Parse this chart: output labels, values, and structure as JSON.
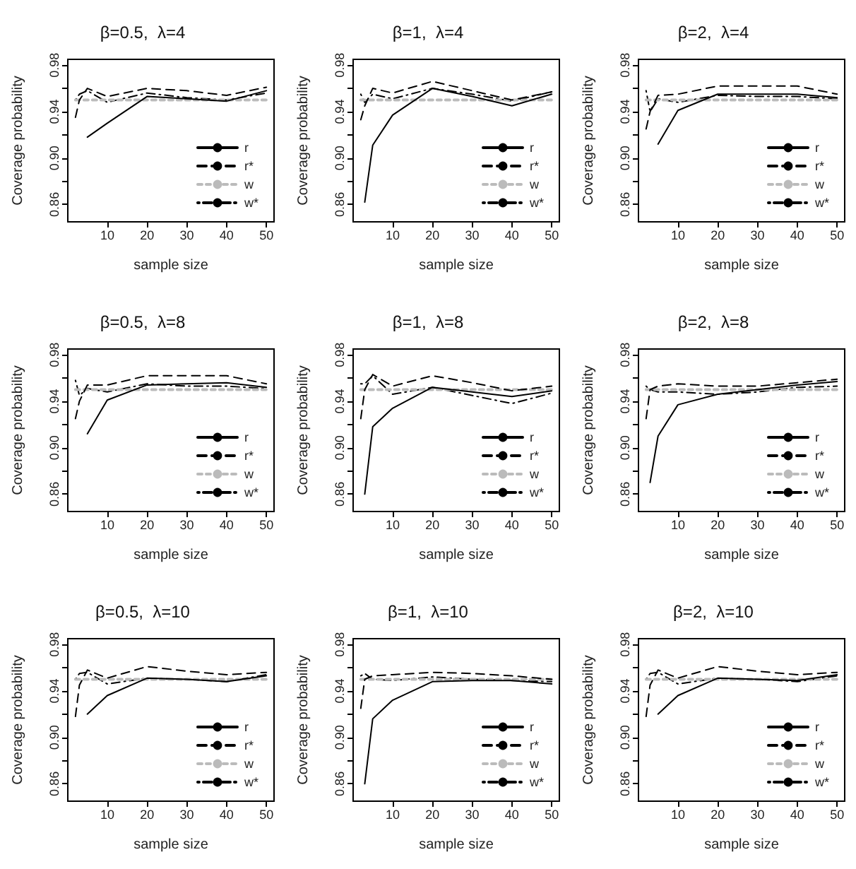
{
  "chart_data": [
    {
      "type": "line",
      "title": "β=0.5,  λ=4",
      "xlabel": "sample size",
      "ylabel": "Coverage probability",
      "x": [
        2,
        3,
        5,
        10,
        20,
        30,
        40,
        50
      ],
      "xlim": [
        0.08,
        51.92
      ],
      "ylim": [
        0.845,
        0.985
      ],
      "xticks": [
        10,
        20,
        30,
        40,
        50
      ],
      "yticks": [
        0.86,
        {
          "value": 0.88,
          "label": null
        },
        {
          "value": 0.9,
          "label": "0.90"
        },
        {
          "value": 0.92,
          "label": null
        },
        0.94,
        {
          "value": 0.96,
          "label": null
        },
        0.98
      ],
      "grid": false,
      "legend": "bottom right",
      "marker": "none",
      "series": [
        {
          "name": "r",
          "color": "#000000",
          "line_style": "solid",
          "values": [
            null,
            null,
            0.918,
            0.93,
            0.953,
            0.951,
            0.949,
            0.958
          ]
        },
        {
          "name": "r*",
          "color": "#000000",
          "line_style": "dashed",
          "values": [
            0.935,
            0.95,
            0.96,
            0.953,
            0.96,
            0.958,
            0.954,
            0.961
          ]
        },
        {
          "name": "w",
          "color": "#bbbbbb",
          "line_style": "dotted",
          "values": [
            0.95,
            0.95,
            0.95,
            0.95,
            0.95,
            0.95,
            0.95,
            0.95
          ]
        },
        {
          "name": "w*",
          "color": "#000000",
          "line_style": "dashdot",
          "values": [
            0.95,
            0.955,
            0.958,
            0.948,
            0.956,
            0.952,
            0.95,
            0.956
          ]
        }
      ]
    },
    {
      "type": "line",
      "title": "β=1,  λ=4",
      "xlabel": "sample size",
      "ylabel": "Coverage probability",
      "x": [
        2,
        3,
        5,
        10,
        20,
        30,
        40,
        50
      ],
      "xlim": [
        0.08,
        51.92
      ],
      "ylim": [
        0.845,
        0.985
      ],
      "xticks": [
        10,
        20,
        30,
        40,
        50
      ],
      "yticks": [
        0.86,
        {
          "value": 0.88,
          "label": null
        },
        {
          "value": 0.9,
          "label": "0.90"
        },
        {
          "value": 0.92,
          "label": null
        },
        0.94,
        {
          "value": 0.96,
          "label": null
        },
        0.98
      ],
      "grid": false,
      "legend": "bottom right",
      "marker": "none",
      "series": [
        {
          "name": "r",
          "color": "#000000",
          "line_style": "solid",
          "values": [
            null,
            0.862,
            0.911,
            0.937,
            0.96,
            0.953,
            0.945,
            0.955
          ]
        },
        {
          "name": "r*",
          "color": "#000000",
          "line_style": "dashed",
          "values": [
            0.933,
            0.945,
            0.96,
            0.956,
            0.966,
            0.958,
            0.95,
            0.957
          ]
        },
        {
          "name": "w",
          "color": "#bbbbbb",
          "line_style": "dotted",
          "values": [
            0.95,
            0.95,
            0.95,
            0.95,
            0.95,
            0.95,
            0.95,
            0.95
          ]
        },
        {
          "name": "w*",
          "color": "#000000",
          "line_style": "dashdot",
          "values": [
            0.955,
            0.948,
            0.955,
            0.951,
            0.96,
            0.955,
            0.949,
            0.957
          ]
        }
      ]
    },
    {
      "type": "line",
      "title": "β=2,  λ=4",
      "xlabel": "sample size",
      "ylabel": "Coverage probability",
      "x": [
        2,
        3,
        5,
        10,
        20,
        30,
        40,
        50
      ],
      "xlim": [
        0.08,
        51.92
      ],
      "ylim": [
        0.845,
        0.985
      ],
      "xticks": [
        10,
        20,
        30,
        40,
        50
      ],
      "yticks": [
        0.86,
        {
          "value": 0.88,
          "label": null
        },
        {
          "value": 0.9,
          "label": "0.90"
        },
        {
          "value": 0.92,
          "label": null
        },
        0.94,
        {
          "value": 0.96,
          "label": null
        },
        0.98
      ],
      "grid": false,
      "legend": "bottom right",
      "marker": "none",
      "series": [
        {
          "name": "r",
          "color": "#000000",
          "line_style": "solid",
          "values": [
            null,
            null,
            0.912,
            0.941,
            0.955,
            0.955,
            0.955,
            0.952
          ]
        },
        {
          "name": "r*",
          "color": "#000000",
          "line_style": "dashed",
          "values": [
            0.925,
            0.94,
            0.954,
            0.955,
            0.962,
            0.962,
            0.962,
            0.955
          ]
        },
        {
          "name": "w",
          "color": "#bbbbbb",
          "line_style": "dotted",
          "values": [
            0.95,
            0.95,
            0.95,
            0.95,
            0.95,
            0.95,
            0.95,
            0.95
          ]
        },
        {
          "name": "w*",
          "color": "#000000",
          "line_style": "dashdot",
          "values": [
            0.958,
            0.94,
            0.951,
            0.948,
            0.954,
            0.953,
            0.953,
            0.951
          ]
        }
      ]
    },
    {
      "type": "line",
      "title": "β=0.5,  λ=8",
      "xlabel": "sample size",
      "ylabel": "Coverage probability",
      "x": [
        2,
        3,
        5,
        10,
        20,
        30,
        40,
        50
      ],
      "xlim": [
        0.08,
        51.92
      ],
      "ylim": [
        0.845,
        0.985
      ],
      "xticks": [
        10,
        20,
        30,
        40,
        50
      ],
      "yticks": [
        0.86,
        {
          "value": 0.88,
          "label": null
        },
        {
          "value": 0.9,
          "label": "0.90"
        },
        {
          "value": 0.92,
          "label": null
        },
        0.94,
        {
          "value": 0.96,
          "label": null
        },
        0.98
      ],
      "grid": false,
      "legend": "bottom right",
      "marker": "none",
      "series": [
        {
          "name": "r",
          "color": "#000000",
          "line_style": "solid",
          "values": [
            null,
            null,
            0.912,
            0.941,
            0.954,
            0.955,
            0.956,
            0.952
          ]
        },
        {
          "name": "r*",
          "color": "#000000",
          "line_style": "dashed",
          "values": [
            0.925,
            0.94,
            0.954,
            0.954,
            0.962,
            0.962,
            0.962,
            0.955
          ]
        },
        {
          "name": "w",
          "color": "#bbbbbb",
          "line_style": "dotted",
          "values": [
            0.95,
            0.95,
            0.95,
            0.95,
            0.95,
            0.95,
            0.95,
            0.95
          ]
        },
        {
          "name": "w*",
          "color": "#000000",
          "line_style": "dashdot",
          "values": [
            0.958,
            0.945,
            0.951,
            0.948,
            0.955,
            0.953,
            0.953,
            0.951
          ]
        }
      ]
    },
    {
      "type": "line",
      "title": "β=1,  λ=8",
      "xlabel": "sample size",
      "ylabel": "Coverage probability",
      "x": [
        2,
        3,
        5,
        10,
        20,
        30,
        40,
        50
      ],
      "xlim": [
        0.08,
        51.92
      ],
      "ylim": [
        0.845,
        0.985
      ],
      "xticks": [
        10,
        20,
        30,
        40,
        50
      ],
      "yticks": [
        0.86,
        {
          "value": 0.88,
          "label": null
        },
        {
          "value": 0.9,
          "label": "0.90"
        },
        {
          "value": 0.92,
          "label": null
        },
        0.94,
        {
          "value": 0.96,
          "label": null
        },
        0.98
      ],
      "grid": false,
      "legend": "bottom right",
      "marker": "none",
      "series": [
        {
          "name": "r",
          "color": "#000000",
          "line_style": "solid",
          "values": [
            null,
            0.86,
            0.918,
            0.934,
            0.952,
            0.948,
            0.944,
            0.949
          ]
        },
        {
          "name": "r*",
          "color": "#000000",
          "line_style": "dashed",
          "values": [
            0.925,
            0.95,
            0.963,
            0.953,
            0.962,
            0.956,
            0.949,
            0.953
          ]
        },
        {
          "name": "w",
          "color": "#bbbbbb",
          "line_style": "dotted",
          "values": [
            0.95,
            0.95,
            0.95,
            0.95,
            0.95,
            0.95,
            0.95,
            0.95
          ]
        },
        {
          "name": "w*",
          "color": "#000000",
          "line_style": "dashdot",
          "values": [
            0.955,
            0.955,
            0.962,
            0.946,
            0.952,
            0.945,
            0.938,
            0.947
          ]
        }
      ]
    },
    {
      "type": "line",
      "title": "β=2,  λ=8",
      "xlabel": "sample size",
      "ylabel": "Coverage probability",
      "x": [
        2,
        3,
        5,
        10,
        20,
        30,
        40,
        50
      ],
      "xlim": [
        0.08,
        51.92
      ],
      "ylim": [
        0.845,
        0.985
      ],
      "xticks": [
        10,
        20,
        30,
        40,
        50
      ],
      "yticks": [
        0.86,
        {
          "value": 0.88,
          "label": null
        },
        {
          "value": 0.9,
          "label": "0.90"
        },
        {
          "value": 0.92,
          "label": null
        },
        0.94,
        {
          "value": 0.96,
          "label": null
        },
        0.98
      ],
      "grid": false,
      "legend": "bottom right",
      "marker": "none",
      "series": [
        {
          "name": "r",
          "color": "#000000",
          "line_style": "solid",
          "values": [
            null,
            0.87,
            0.91,
            0.937,
            0.946,
            0.95,
            0.954,
            0.957
          ]
        },
        {
          "name": "r*",
          "color": "#000000",
          "line_style": "dashed",
          "values": [
            0.925,
            0.95,
            0.953,
            0.955,
            0.953,
            0.953,
            0.956,
            0.959
          ]
        },
        {
          "name": "w",
          "color": "#bbbbbb",
          "line_style": "dotted",
          "values": [
            0.95,
            0.95,
            0.95,
            0.95,
            0.95,
            0.95,
            0.95,
            0.95
          ]
        },
        {
          "name": "w*",
          "color": "#000000",
          "line_style": "dashdot",
          "values": [
            0.953,
            0.95,
            0.948,
            0.948,
            0.946,
            0.948,
            0.952,
            0.953
          ]
        }
      ]
    },
    {
      "type": "line",
      "title": "β=0.5,  λ=10",
      "xlabel": "sample size",
      "ylabel": "Coverage probability",
      "x": [
        2,
        3,
        5,
        10,
        20,
        30,
        40,
        50
      ],
      "xlim": [
        0.08,
        51.92
      ],
      "ylim": [
        0.845,
        0.985
      ],
      "xticks": [
        10,
        20,
        30,
        40,
        50
      ],
      "yticks": [
        0.86,
        {
          "value": 0.88,
          "label": null
        },
        {
          "value": 0.9,
          "label": "0.90"
        },
        {
          "value": 0.92,
          "label": null
        },
        0.94,
        {
          "value": 0.96,
          "label": null
        },
        0.98
      ],
      "grid": false,
      "legend": "bottom right",
      "marker": "none",
      "series": [
        {
          "name": "r",
          "color": "#000000",
          "line_style": "solid",
          "values": [
            null,
            null,
            0.92,
            0.936,
            0.951,
            0.95,
            0.948,
            0.953
          ]
        },
        {
          "name": "r*",
          "color": "#000000",
          "line_style": "dashed",
          "values": [
            0.918,
            0.945,
            0.958,
            0.951,
            0.961,
            0.957,
            0.954,
            0.956
          ]
        },
        {
          "name": "w",
          "color": "#bbbbbb",
          "line_style": "dotted",
          "values": [
            0.95,
            0.95,
            0.95,
            0.95,
            0.95,
            0.95,
            0.95,
            0.95
          ]
        },
        {
          "name": "w*",
          "color": "#000000",
          "line_style": "dashdot",
          "values": [
            0.95,
            0.955,
            0.956,
            0.946,
            0.951,
            0.95,
            0.948,
            0.954
          ]
        }
      ]
    },
    {
      "type": "line",
      "title": "β=1,  λ=10",
      "xlabel": "sample size",
      "ylabel": "Coverage probability",
      "x": [
        2,
        3,
        5,
        10,
        20,
        30,
        40,
        50
      ],
      "xlim": [
        0.08,
        51.92
      ],
      "ylim": [
        0.845,
        0.985
      ],
      "xticks": [
        10,
        20,
        30,
        40,
        50
      ],
      "yticks": [
        0.86,
        {
          "value": 0.88,
          "label": null
        },
        {
          "value": 0.9,
          "label": "0.90"
        },
        {
          "value": 0.92,
          "label": null
        },
        0.94,
        {
          "value": 0.96,
          "label": null
        },
        0.98
      ],
      "grid": false,
      "legend": "bottom right",
      "marker": "none",
      "series": [
        {
          "name": "r",
          "color": "#000000",
          "line_style": "solid",
          "values": [
            null,
            0.86,
            0.916,
            0.932,
            0.948,
            0.949,
            0.949,
            0.946
          ]
        },
        {
          "name": "r*",
          "color": "#000000",
          "line_style": "dashed",
          "values": [
            0.925,
            0.95,
            0.953,
            0.954,
            0.956,
            0.955,
            0.953,
            0.95
          ]
        },
        {
          "name": "w",
          "color": "#bbbbbb",
          "line_style": "dotted",
          "values": [
            0.95,
            0.95,
            0.95,
            0.95,
            0.95,
            0.95,
            0.95,
            0.95
          ]
        },
        {
          "name": "w*",
          "color": "#000000",
          "line_style": "dashdot",
          "values": [
            0.953,
            0.955,
            0.95,
            0.949,
            0.952,
            0.95,
            0.949,
            0.948
          ]
        }
      ]
    },
    {
      "type": "line",
      "title": "β=2,  λ=10",
      "xlabel": "sample size",
      "ylabel": "Coverage probability",
      "x": [
        2,
        3,
        5,
        10,
        20,
        30,
        40,
        50
      ],
      "xlim": [
        0.08,
        51.92
      ],
      "ylim": [
        0.845,
        0.985
      ],
      "xticks": [
        10,
        20,
        30,
        40,
        50
      ],
      "yticks": [
        0.86,
        {
          "value": 0.88,
          "label": null
        },
        {
          "value": 0.9,
          "label": "0.90"
        },
        {
          "value": 0.92,
          "label": null
        },
        0.94,
        {
          "value": 0.96,
          "label": null
        },
        0.98
      ],
      "grid": false,
      "legend": "bottom right",
      "marker": "none",
      "series": [
        {
          "name": "r",
          "color": "#000000",
          "line_style": "solid",
          "values": [
            null,
            null,
            0.92,
            0.936,
            0.951,
            0.95,
            0.949,
            0.954
          ]
        },
        {
          "name": "r*",
          "color": "#000000",
          "line_style": "dashed",
          "values": [
            0.918,
            0.945,
            0.958,
            0.951,
            0.961,
            0.957,
            0.954,
            0.956
          ]
        },
        {
          "name": "w",
          "color": "#bbbbbb",
          "line_style": "dotted",
          "values": [
            0.95,
            0.95,
            0.95,
            0.95,
            0.95,
            0.95,
            0.95,
            0.95
          ]
        },
        {
          "name": "w*",
          "color": "#000000",
          "line_style": "dashdot",
          "values": [
            0.95,
            0.955,
            0.956,
            0.946,
            0.951,
            0.95,
            0.948,
            0.953
          ]
        }
      ]
    }
  ]
}
